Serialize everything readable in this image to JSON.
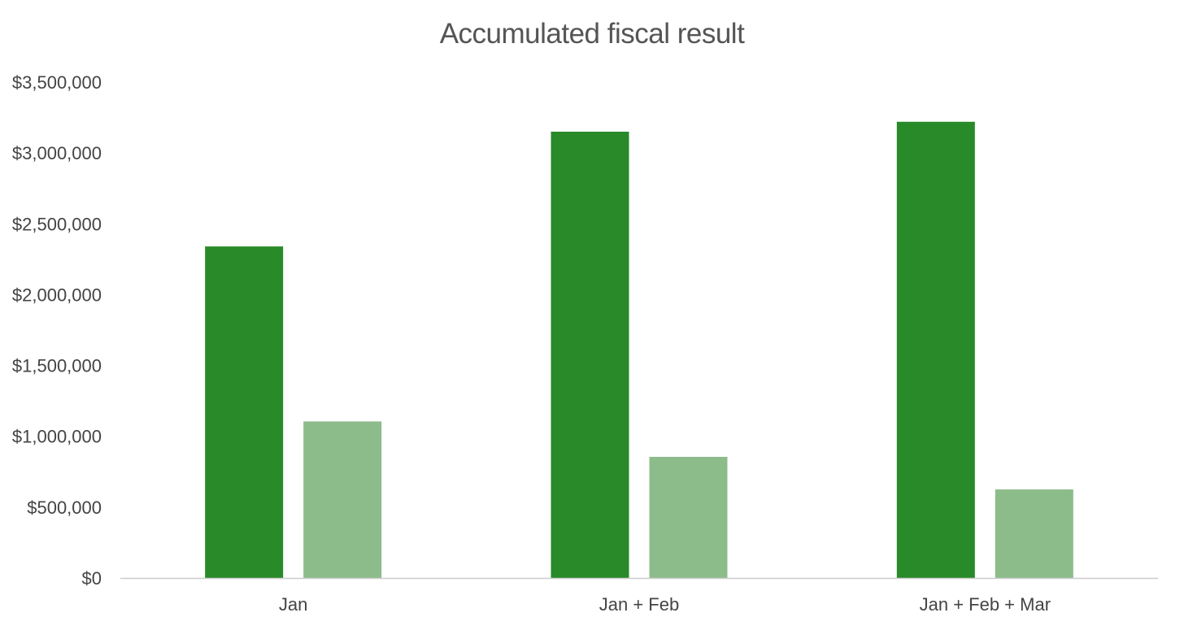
{
  "chart_data": {
    "type": "bar",
    "title": "Accumulated fiscal result",
    "xlabel": "",
    "ylabel": "",
    "categories": [
      "Jan",
      "Jan + Feb",
      "Jan + Feb + Mar"
    ],
    "series": [
      {
        "values": [
          2340000,
          3150000,
          3220000
        ],
        "color": "#288a28"
      },
      {
        "values": [
          1105000,
          855000,
          625000
        ],
        "color": "#8cbc8a"
      }
    ],
    "ylim": [
      0,
      3500000
    ],
    "yticks": [
      0,
      500000,
      1000000,
      1500000,
      2000000,
      2500000,
      3000000,
      3500000
    ],
    "ytick_labels": [
      "$0",
      "$500,000",
      "$1,000,000",
      "$1,500,000",
      "$2,000,000",
      "$2,500,000",
      "$3,000,000",
      "$3,500,000"
    ],
    "grid": false,
    "legend": "none",
    "axis_color": "#cccccc"
  }
}
